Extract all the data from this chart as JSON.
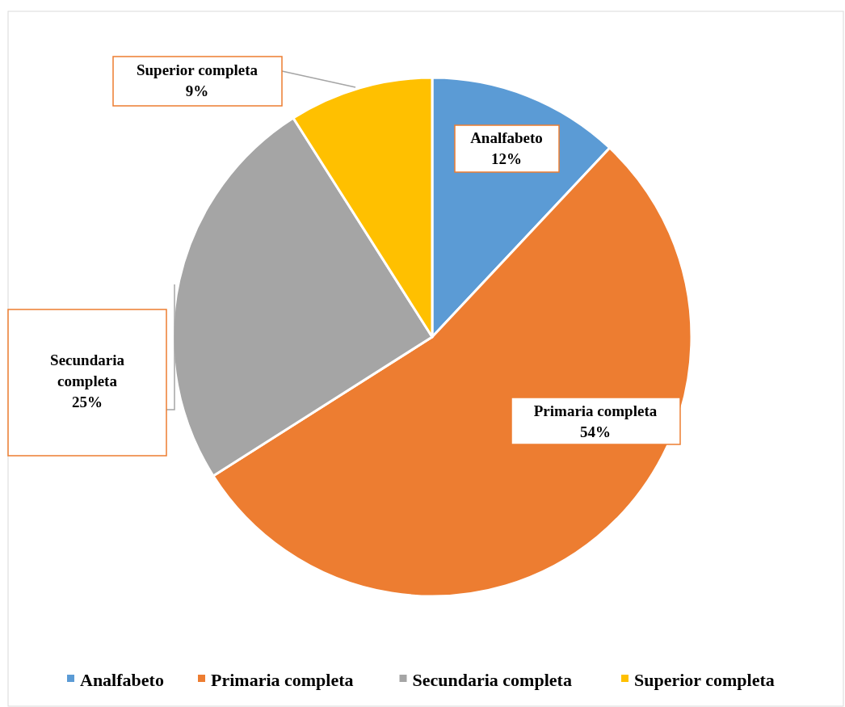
{
  "chart_data": {
    "type": "pie",
    "categories": [
      "Analfabeto",
      "Primaria completa",
      "Secundaria completa",
      "Superior completa"
    ],
    "values": [
      12,
      54,
      25,
      9
    ],
    "colors": [
      "#5b9bd5",
      "#ed7d31",
      "#a5a5a5",
      "#ffc000"
    ],
    "value_labels": [
      "12%",
      "54%",
      "25%",
      "9%"
    ],
    "legend": "bottom"
  }
}
